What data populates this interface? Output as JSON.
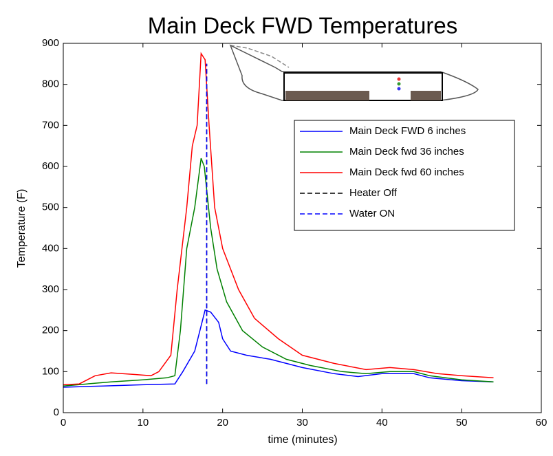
{
  "chart_data": {
    "type": "line",
    "title": "Main Deck FWD Temperatures",
    "x_label": "time (minutes)",
    "y_label": "Temperature (F)",
    "xlim": [
      0,
      60
    ],
    "xticks": [
      0,
      10,
      20,
      30,
      40,
      50,
      60
    ],
    "ylim": [
      0,
      900
    ],
    "yticks": [
      0,
      100,
      200,
      300,
      400,
      500,
      600,
      700,
      800,
      900
    ],
    "legend": "upper right",
    "series": [
      {
        "name": "Main Deck  FWD 6 inches",
        "color": "#0000ff",
        "dash": false,
        "x": [
          0,
          5,
          10,
          14,
          15,
          16.5,
          17.8,
          18.5,
          19.5,
          20,
          21,
          23,
          26,
          30,
          34,
          37,
          40,
          44,
          46,
          50,
          54
        ],
        "values": [
          62,
          65,
          68,
          70,
          100,
          150,
          250,
          245,
          220,
          180,
          150,
          140,
          130,
          110,
          95,
          88,
          95,
          95,
          85,
          78,
          75
        ]
      },
      {
        "name": "Main Deck  fwd 36 inches",
        "color": "#008000",
        "dash": false,
        "x": [
          0,
          3,
          6,
          10,
          13,
          14,
          14.7,
          15.5,
          16.5,
          17.3,
          17.7,
          18.5,
          19.3,
          20.5,
          22.5,
          25,
          28,
          31,
          35,
          38,
          41,
          44,
          46,
          50,
          54
        ],
        "values": [
          65,
          70,
          75,
          80,
          85,
          90,
          200,
          400,
          500,
          620,
          600,
          450,
          350,
          270,
          200,
          160,
          130,
          115,
          100,
          95,
          100,
          100,
          90,
          80,
          75
        ]
      },
      {
        "name": "Main Deck  fwd 60 inches",
        "color": "#ff0000",
        "dash": false,
        "x": [
          0,
          2,
          4,
          6,
          9,
          11,
          12,
          13.5,
          14.3,
          15.5,
          16.2,
          16.8,
          17.3,
          17.8,
          18.3,
          19,
          20,
          22,
          24,
          27,
          30,
          34,
          38,
          41,
          44,
          47,
          50,
          54
        ],
        "values": [
          68,
          70,
          90,
          97,
          93,
          90,
          100,
          140,
          300,
          500,
          650,
          700,
          875,
          860,
          700,
          500,
          400,
          300,
          230,
          180,
          140,
          120,
          105,
          110,
          105,
          95,
          90,
          85
        ]
      },
      {
        "name": "Heater Off",
        "color": "#000000",
        "dash": true,
        "x": [
          18,
          18
        ],
        "values": [
          70,
          850
        ]
      },
      {
        "name": "Water ON",
        "color": "#0000ff",
        "dash": true,
        "x": [
          18,
          18
        ],
        "values": [
          70,
          850
        ]
      }
    ]
  }
}
